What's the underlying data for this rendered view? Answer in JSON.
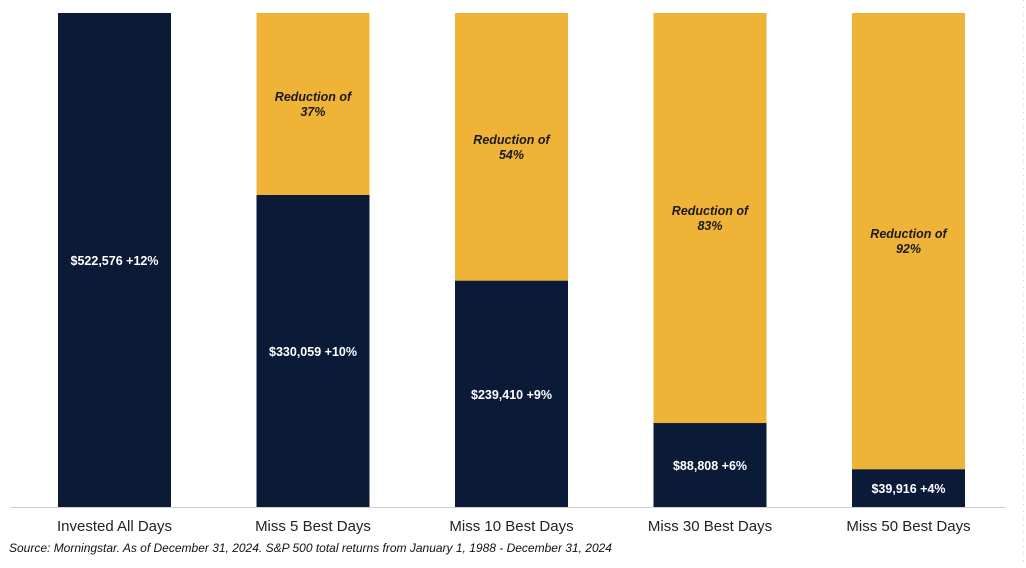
{
  "chart_data": {
    "type": "bar",
    "stacked": true,
    "categories": [
      "Invested All Days",
      "Miss 5 Best Days",
      "Miss 10 Best Days",
      "Miss 30 Best Days",
      "Miss 50 Best Days"
    ],
    "ending_values": [
      522576,
      330059,
      239410,
      88808,
      39916
    ],
    "value_labels": [
      "$522,576 +12%",
      "$330,059 +10%",
      "$239,410 +9%",
      "$88,808 +6%",
      "$39,916 +4%"
    ],
    "reduction_pct": [
      0,
      37,
      54,
      83,
      92
    ],
    "reduction_labels": [
      [
        "",
        ""
      ],
      [
        "Reduction of",
        "37%"
      ],
      [
        "Reduction of",
        "54%"
      ],
      [
        "Reduction of",
        "83%"
      ],
      [
        "Reduction of",
        "92%"
      ]
    ],
    "ylim": [
      0,
      522576
    ],
    "grid": false,
    "colors": {
      "value_bar": "#0b1a36",
      "reduction_bar": "#efb437",
      "axis": "#d0d0d0"
    }
  },
  "source_note": "Source: Morningstar. As of December 31, 2024. S&P 500 total returns from January 1, 1988 - December 31, 2024"
}
